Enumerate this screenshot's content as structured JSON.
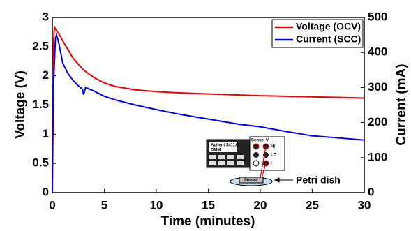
{
  "chart_data": {
    "type": "line",
    "x_label": "Time (minutes)",
    "y_label": "Voltage (V)",
    "y2_label": "Current (mA)",
    "xlim": [
      0,
      30
    ],
    "xticks": [
      0,
      5,
      10,
      15,
      20,
      25,
      30
    ],
    "ylim": [
      0,
      3
    ],
    "yticks": [
      0,
      0.5,
      1,
      1.5,
      2,
      2.5,
      3
    ],
    "y2lim": [
      0,
      500
    ],
    "y2ticks": [
      0,
      100,
      200,
      300,
      400,
      500
    ],
    "legend": "upper right",
    "series": [
      {
        "name": "Voltage (OCV)",
        "color": "#ee0000",
        "x": [
          0,
          0.1,
          0.2,
          0.3,
          0.5,
          0.7,
          1,
          1.5,
          2,
          3,
          4,
          5,
          6,
          7,
          8,
          10,
          12,
          15,
          20,
          25,
          30
        ],
        "values": [
          0,
          2.5,
          2.85,
          2.8,
          2.75,
          2.7,
          2.6,
          2.45,
          2.3,
          2.1,
          1.97,
          1.88,
          1.82,
          1.79,
          1.76,
          1.73,
          1.71,
          1.69,
          1.66,
          1.64,
          1.62
        ]
      },
      {
        "name": "Current (SCC)",
        "color": "#0000ee",
        "axis": "y2",
        "x": [
          0,
          0.1,
          0.3,
          0.4,
          0.6,
          0.8,
          1,
          1.5,
          2,
          2.5,
          2.9,
          3,
          3.2,
          4,
          5,
          6,
          8,
          10,
          12,
          15,
          18,
          20,
          22,
          25,
          28,
          30
        ],
        "values": [
          0,
          300,
          440,
          450,
          430,
          400,
          370,
          340,
          320,
          305,
          295,
          280,
          300,
          290,
          275,
          265,
          250,
          237,
          225,
          210,
          195,
          188,
          177,
          162,
          155,
          150
        ]
      }
    ],
    "inset": {
      "meter": "Agilent 3411A",
      "meter_sub": "DMM",
      "sense": "Sense",
      "v": "V",
      "hi": "HI",
      "lo": "LO",
      "i": "I",
      "sensor": "Sensor",
      "dish": "Petri dish"
    }
  }
}
